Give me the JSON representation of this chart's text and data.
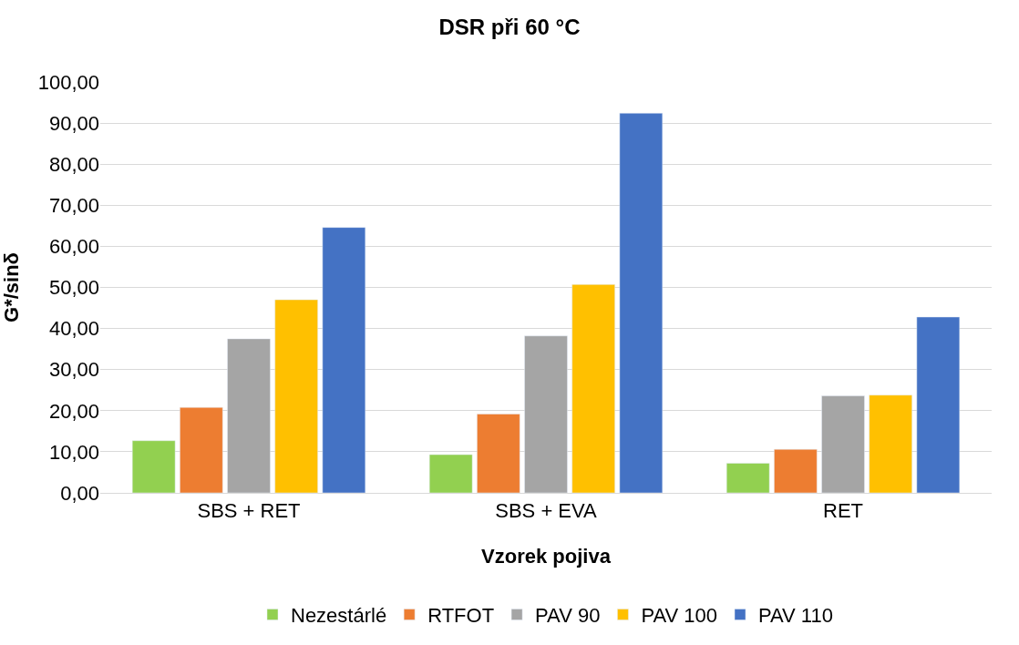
{
  "chart_data": {
    "type": "bar",
    "title": "DSR při 60 °C",
    "xlabel": "Vzorek pojiva",
    "ylabel": "G*/sinδ",
    "categories": [
      "SBS + RET",
      "SBS + EVA",
      "RET"
    ],
    "series": [
      {
        "name": "Nezestárlé",
        "color": "#92d050",
        "values": [
          12.7,
          9.3,
          7.2
        ]
      },
      {
        "name": "RTFOT",
        "color": "#ed7d31",
        "values": [
          20.8,
          19.2,
          10.6
        ]
      },
      {
        "name": "PAV 90",
        "color": "#a5a5a5",
        "values": [
          37.5,
          38.2,
          23.6
        ]
      },
      {
        "name": "PAV 100",
        "color": "#ffc000",
        "values": [
          47.0,
          50.7,
          23.8
        ]
      },
      {
        "name": "PAV 110",
        "color": "#4472c4",
        "values": [
          64.6,
          92.4,
          42.8
        ]
      }
    ],
    "ylim": [
      0,
      100
    ],
    "yticks": [
      {
        "value": 0,
        "label": "0,00"
      },
      {
        "value": 10,
        "label": "10,00"
      },
      {
        "value": 20,
        "label": "20,00"
      },
      {
        "value": 30,
        "label": "30,00"
      },
      {
        "value": 40,
        "label": "40,00"
      },
      {
        "value": 50,
        "label": "50,00"
      },
      {
        "value": 60,
        "label": "60,00"
      },
      {
        "value": 70,
        "label": "70,00"
      },
      {
        "value": 80,
        "label": "80,00"
      },
      {
        "value": 90,
        "label": "90,00"
      },
      {
        "value": 100,
        "label": "100,00"
      }
    ],
    "grid": "y",
    "legend": "bottom"
  }
}
